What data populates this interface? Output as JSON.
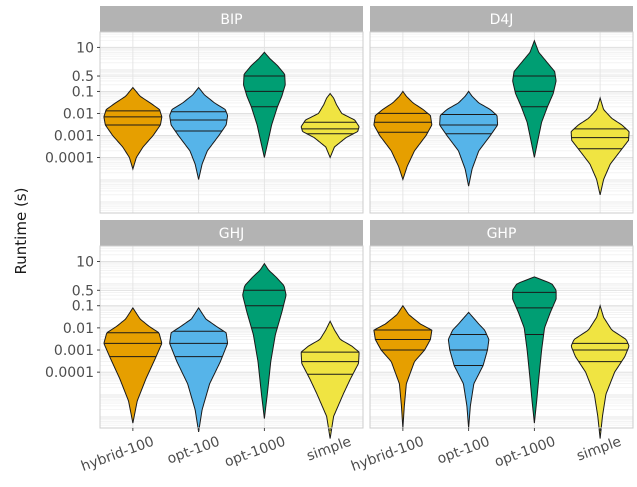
{
  "chart_data": {
    "type": "violin",
    "ylabel": "Runtime (s)",
    "xlabel": "",
    "y_scale": "log",
    "ylim": [
      3e-07,
      50
    ],
    "y_ticks": [
      {
        "label": "10",
        "value": 10
      },
      {
        "label": "0.5",
        "value": 0.5
      },
      {
        "label": "0.1",
        "value": 0.1
      },
      {
        "label": "0.01",
        "value": 0.01
      },
      {
        "label": "0.001",
        "value": 0.001
      },
      {
        "label": "0.0001",
        "value": 0.0001
      }
    ],
    "categories": [
      "hybrid-100",
      "opt-100",
      "opt-1000",
      "simple"
    ],
    "colors": {
      "hybrid-100": "#E69F00",
      "opt-100": "#56B4E9",
      "opt-1000": "#009E73",
      "simple": "#F0E442"
    },
    "facet_label_bg": "#b3b3b3",
    "panels": [
      {
        "title": "BIP",
        "violins": [
          {
            "category": "hybrid-100",
            "min": 3e-05,
            "max": 0.15,
            "q1": 0.003,
            "median": 0.007,
            "q3": 0.013,
            "profile": [
              [
                3e-05,
                0.0
              ],
              [
                0.0001,
                0.12
              ],
              [
                0.0003,
                0.35
              ],
              [
                0.001,
                0.7
              ],
              [
                0.003,
                0.95
              ],
              [
                0.007,
                1.0
              ],
              [
                0.015,
                0.92
              ],
              [
                0.03,
                0.6
              ],
              [
                0.06,
                0.25
              ],
              [
                0.15,
                0.0
              ]
            ]
          },
          {
            "category": "opt-100",
            "min": 1e-05,
            "max": 0.15,
            "q1": 0.0016,
            "median": 0.005,
            "q3": 0.012,
            "profile": [
              [
                1e-05,
                0.0
              ],
              [
                5e-05,
                0.12
              ],
              [
                0.0002,
                0.3
              ],
              [
                0.001,
                0.7
              ],
              [
                0.003,
                0.95
              ],
              [
                0.008,
                1.0
              ],
              [
                0.015,
                0.92
              ],
              [
                0.03,
                0.55
              ],
              [
                0.07,
                0.2
              ],
              [
                0.15,
                0.0
              ]
            ]
          },
          {
            "category": "opt-1000",
            "min": 0.0001,
            "max": 6,
            "q1": 0.02,
            "median": 0.1,
            "q3": 0.5,
            "profile": [
              [
                0.0001,
                0.0
              ],
              [
                0.0005,
                0.12
              ],
              [
                0.003,
                0.25
              ],
              [
                0.02,
                0.45
              ],
              [
                0.06,
                0.6
              ],
              [
                0.2,
                0.72
              ],
              [
                0.6,
                0.7
              ],
              [
                1.5,
                0.45
              ],
              [
                3,
                0.2
              ],
              [
                6,
                0.0
              ]
            ]
          },
          {
            "category": "simple",
            "min": 0.0001,
            "max": 0.08,
            "q1": 0.0012,
            "median": 0.002,
            "q3": 0.004,
            "profile": [
              [
                0.0001,
                0.0
              ],
              [
                0.0003,
                0.15
              ],
              [
                0.0008,
                0.55
              ],
              [
                0.0015,
                0.95
              ],
              [
                0.0025,
                1.0
              ],
              [
                0.005,
                0.85
              ],
              [
                0.01,
                0.4
              ],
              [
                0.025,
                0.22
              ],
              [
                0.05,
                0.12
              ],
              [
                0.08,
                0.0
              ]
            ]
          }
        ]
      },
      {
        "title": "D4J",
        "violins": [
          {
            "category": "hybrid-100",
            "min": 1e-05,
            "max": 0.1,
            "q1": 0.0014,
            "median": 0.004,
            "q3": 0.01,
            "profile": [
              [
                1e-05,
                0.0
              ],
              [
                4e-05,
                0.15
              ],
              [
                0.0002,
                0.4
              ],
              [
                0.001,
                0.8
              ],
              [
                0.003,
                1.0
              ],
              [
                0.008,
                0.95
              ],
              [
                0.015,
                0.7
              ],
              [
                0.03,
                0.35
              ],
              [
                0.06,
                0.12
              ],
              [
                0.1,
                0.0
              ]
            ]
          },
          {
            "category": "opt-100",
            "min": 5e-06,
            "max": 0.1,
            "q1": 0.0012,
            "median": 0.003,
            "q3": 0.009,
            "profile": [
              [
                5e-06,
                0.0
              ],
              [
                3e-05,
                0.12
              ],
              [
                0.0002,
                0.35
              ],
              [
                0.001,
                0.75
              ],
              [
                0.003,
                1.0
              ],
              [
                0.008,
                0.98
              ],
              [
                0.015,
                0.75
              ],
              [
                0.03,
                0.35
              ],
              [
                0.06,
                0.12
              ],
              [
                0.1,
                0.0
              ]
            ]
          },
          {
            "category": "opt-1000",
            "min": 0.0001,
            "max": 20,
            "q1": 0.02,
            "median": 0.1,
            "q3": 0.5,
            "profile": [
              [
                0.0001,
                0.0
              ],
              [
                0.0006,
                0.12
              ],
              [
                0.004,
                0.25
              ],
              [
                0.02,
                0.45
              ],
              [
                0.08,
                0.65
              ],
              [
                0.3,
                0.75
              ],
              [
                0.8,
                0.7
              ],
              [
                2,
                0.45
              ],
              [
                6,
                0.15
              ],
              [
                20,
                0.0
              ]
            ]
          },
          {
            "category": "simple",
            "min": 2e-06,
            "max": 0.05,
            "q1": 0.00025,
            "median": 0.0008,
            "q3": 0.002,
            "profile": [
              [
                2e-06,
                0.0
              ],
              [
                1e-05,
                0.12
              ],
              [
                5e-05,
                0.35
              ],
              [
                0.0002,
                0.7
              ],
              [
                0.0006,
                0.98
              ],
              [
                0.0015,
                1.0
              ],
              [
                0.003,
                0.75
              ],
              [
                0.006,
                0.4
              ],
              [
                0.015,
                0.12
              ],
              [
                0.05,
                0.0
              ]
            ]
          }
        ]
      },
      {
        "title": "GHJ",
        "violins": [
          {
            "category": "hybrid-100",
            "min": 5e-07,
            "max": 0.08,
            "q1": 0.0005,
            "median": 0.002,
            "q3": 0.006,
            "profile": [
              [
                5e-07,
                0.0
              ],
              [
                5e-06,
                0.15
              ],
              [
                5e-05,
                0.45
              ],
              [
                0.0005,
                0.8
              ],
              [
                0.002,
                1.0
              ],
              [
                0.006,
                0.9
              ],
              [
                0.012,
                0.55
              ],
              [
                0.025,
                0.25
              ],
              [
                0.05,
                0.1
              ],
              [
                0.08,
                0.0
              ]
            ]
          },
          {
            "category": "opt-100",
            "min": 2e-07,
            "max": 0.08,
            "q1": 0.0005,
            "median": 0.002,
            "q3": 0.007,
            "profile": [
              [
                2e-07,
                0.0
              ],
              [
                2e-06,
                0.12
              ],
              [
                3e-05,
                0.38
              ],
              [
                0.0003,
                0.75
              ],
              [
                0.002,
                1.0
              ],
              [
                0.006,
                0.95
              ],
              [
                0.012,
                0.6
              ],
              [
                0.025,
                0.25
              ],
              [
                0.05,
                0.1
              ],
              [
                0.08,
                0.0
              ]
            ]
          },
          {
            "category": "opt-1000",
            "min": 8e-07,
            "max": 8,
            "q1": 0.01,
            "median": 0.1,
            "q3": 0.5,
            "profile": [
              [
                8e-07,
                0.0
              ],
              [
                1e-05,
                0.1
              ],
              [
                0.0003,
                0.22
              ],
              [
                0.005,
                0.38
              ],
              [
                0.05,
                0.6
              ],
              [
                0.3,
                0.75
              ],
              [
                0.8,
                0.68
              ],
              [
                2,
                0.4
              ],
              [
                4,
                0.15
              ],
              [
                8,
                0.0
              ]
            ]
          },
          {
            "category": "simple",
            "min": 1e-07,
            "max": 0.02,
            "q1": 8e-05,
            "median": 0.0003,
            "q3": 0.0008,
            "profile": [
              [
                1e-07,
                0.0
              ],
              [
                1e-06,
                0.12
              ],
              [
                1e-05,
                0.45
              ],
              [
                5e-05,
                0.7
              ],
              [
                0.00025,
                0.98
              ],
              [
                0.0008,
                1.0
              ],
              [
                0.0015,
                0.75
              ],
              [
                0.003,
                0.35
              ],
              [
                0.008,
                0.15
              ],
              [
                0.02,
                0.0
              ]
            ]
          }
        ]
      },
      {
        "title": "GHP",
        "violins": [
          {
            "category": "hybrid-100",
            "min": 3e-07,
            "max": 0.1,
            "q1": 0.001,
            "median": 0.003,
            "q3": 0.008,
            "profile": [
              [
                3e-07,
                0.0
              ],
              [
                3e-06,
                0.05
              ],
              [
                3e-05,
                0.12
              ],
              [
                0.0003,
                0.4
              ],
              [
                0.001,
                0.75
              ],
              [
                0.003,
                0.95
              ],
              [
                0.008,
                1.0
              ],
              [
                0.015,
                0.6
              ],
              [
                0.04,
                0.2
              ],
              [
                0.1,
                0.0
              ]
            ]
          },
          {
            "category": "opt-100",
            "min": 3e-07,
            "max": 0.05,
            "q1": 0.0002,
            "median": 0.001,
            "q3": 0.005,
            "profile": [
              [
                3e-07,
                0.0
              ],
              [
                3e-06,
                0.06
              ],
              [
                3e-05,
                0.18
              ],
              [
                0.0002,
                0.5
              ],
              [
                0.001,
                0.65
              ],
              [
                0.003,
                0.7
              ],
              [
                0.008,
                0.55
              ],
              [
                0.015,
                0.35
              ],
              [
                0.03,
                0.15
              ],
              [
                0.05,
                0.0
              ]
            ]
          },
          {
            "category": "opt-1000",
            "min": 5e-07,
            "max": 2,
            "q1": 0.005,
            "median": 0.08,
            "q3": 0.4,
            "profile": [
              [
                5e-07,
                0.0
              ],
              [
                5e-06,
                0.08
              ],
              [
                5e-05,
                0.15
              ],
              [
                0.001,
                0.25
              ],
              [
                0.01,
                0.35
              ],
              [
                0.05,
                0.55
              ],
              [
                0.2,
                0.75
              ],
              [
                0.5,
                0.75
              ],
              [
                1,
                0.6
              ],
              [
                2,
                0.0
              ]
            ]
          },
          {
            "category": "simple",
            "min": 1e-07,
            "max": 0.1,
            "q1": 0.0003,
            "median": 0.001,
            "q3": 0.002,
            "profile": [
              [
                1e-07,
                0.0
              ],
              [
                1e-06,
                0.08
              ],
              [
                1e-05,
                0.2
              ],
              [
                0.0001,
                0.5
              ],
              [
                0.0005,
                0.85
              ],
              [
                0.0015,
                1.0
              ],
              [
                0.003,
                0.9
              ],
              [
                0.008,
                0.4
              ],
              [
                0.03,
                0.12
              ],
              [
                0.1,
                0.0
              ]
            ]
          }
        ]
      }
    ]
  }
}
